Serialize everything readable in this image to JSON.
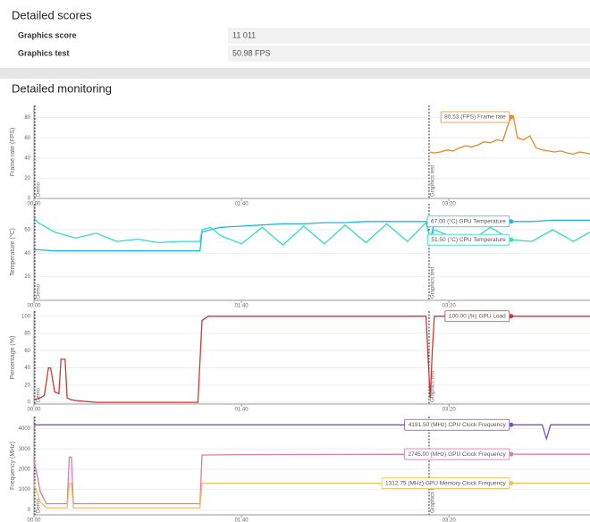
{
  "header": {
    "title": "Detailed scores"
  },
  "scores": {
    "rows": [
      [
        "Graphics score",
        "11 011"
      ],
      [
        "Graphics test",
        "50.98 FPS"
      ]
    ]
  },
  "monitoring": {
    "title": "Detailed monitoring"
  },
  "chart_data": [
    {
      "type": "line",
      "ylabel": "Frame rate (FPS)",
      "xlim": [
        0,
        268
      ],
      "ylim": [
        0,
        92
      ],
      "yticks": [
        0,
        20,
        40,
        60,
        80
      ],
      "xticks": [
        {
          "value": 0,
          "label": "00:00"
        },
        {
          "value": 100,
          "label": "01:40"
        },
        {
          "value": 200,
          "label": "03:20"
        }
      ],
      "markers": [
        {
          "x": 0,
          "label": "Demo"
        },
        {
          "x": 190,
          "label": "Graphics test"
        }
      ],
      "hover_x": 230,
      "x": [
        191,
        193,
        196,
        199,
        202,
        205,
        208,
        211,
        214,
        217,
        220,
        223,
        226,
        228,
        230,
        231,
        233,
        236,
        239,
        242,
        245,
        248,
        251,
        254,
        257,
        260,
        263,
        266,
        268
      ],
      "series": [
        {
          "name": "Frame rate",
          "color": "#e8892b",
          "tooltip": "80.53 (FPS) Frame rate",
          "values": [
            46,
            45,
            46,
            48,
            47,
            50,
            52,
            51,
            53,
            56,
            55,
            58,
            57,
            70,
            80.53,
            82,
            60,
            58,
            62,
            50,
            48,
            47,
            46,
            47,
            45,
            44,
            46,
            45,
            44
          ]
        }
      ]
    },
    {
      "type": "line",
      "ylabel": "Temperature (°C)",
      "xlim": [
        0,
        268
      ],
      "ylim": [
        0,
        82
      ],
      "yticks": [
        20,
        40,
        60
      ],
      "xticks": [
        {
          "value": 0,
          "label": "00:00"
        },
        {
          "value": 100,
          "label": "01:40"
        },
        {
          "value": 200,
          "label": "03:20"
        }
      ],
      "markers": [
        {
          "x": 0,
          "label": "Demo"
        },
        {
          "x": 190,
          "label": "Graphics test"
        }
      ],
      "hover_x": 230,
      "x": [
        0,
        2,
        10,
        20,
        30,
        40,
        50,
        60,
        70,
        80,
        81,
        85,
        90,
        100,
        110,
        120,
        130,
        140,
        150,
        160,
        170,
        180,
        189,
        191,
        193,
        200,
        210,
        220,
        230,
        240,
        250,
        260,
        268
      ],
      "series": [
        {
          "name": "GPU Temperature",
          "color": "#1fb5e6",
          "tooltip": "67.00 (°C) GPU Temperature",
          "values": [
            43,
            43,
            42,
            42,
            42,
            42,
            42,
            42,
            42,
            42,
            58,
            60,
            62,
            63,
            64,
            65,
            65,
            66,
            66,
            67,
            67,
            67,
            67,
            52,
            66,
            67,
            67,
            67,
            67,
            67,
            68,
            68,
            68
          ]
        },
        {
          "name": "CPU Temperature",
          "color": "#2de0c0",
          "tooltip": "51.50 (°C) CPU Temperature",
          "values": [
            70,
            66,
            58,
            53,
            57,
            50,
            52,
            49,
            50,
            50,
            60,
            62,
            55,
            48,
            62,
            47,
            63,
            48,
            64,
            49,
            65,
            50,
            66,
            52,
            60,
            55,
            50,
            62,
            51.5,
            50,
            60,
            50,
            58
          ]
        }
      ]
    },
    {
      "type": "line",
      "ylabel": "Percentage (%)",
      "xlim": [
        0,
        268
      ],
      "ylim": [
        -2,
        106
      ],
      "yticks": [
        0,
        20,
        40,
        60,
        80,
        100
      ],
      "xticks": [
        {
          "value": 0,
          "label": "00:00"
        },
        {
          "value": 100,
          "label": "01:40"
        },
        {
          "value": 200,
          "label": "03:20"
        }
      ],
      "markers": [
        {
          "x": 0,
          "label": "Demo"
        },
        {
          "x": 190,
          "label": "Graphics test"
        }
      ],
      "hover_x": 230,
      "x": [
        0,
        3,
        5,
        7,
        8,
        10,
        12,
        13,
        15,
        16,
        18,
        20,
        25,
        30,
        40,
        60,
        79,
        81,
        84,
        100,
        150,
        189,
        190,
        191,
        192,
        193,
        230,
        268
      ],
      "series": [
        {
          "name": "GPU Load",
          "color": "#c43a3a",
          "tooltip": "100.00 (%) GPU Load",
          "values": [
            3,
            5,
            8,
            40,
            40,
            12,
            10,
            50,
            50,
            5,
            3,
            2,
            1,
            0,
            0,
            0,
            0,
            95,
            100,
            100,
            100,
            100,
            50,
            5,
            60,
            100,
            100,
            100
          ]
        }
      ]
    },
    {
      "type": "line",
      "ylabel": "Frequency (MHz)",
      "xlim": [
        0,
        268
      ],
      "ylim": [
        -250,
        4600
      ],
      "yticks": [
        0,
        1000,
        2000,
        3000,
        4000
      ],
      "xticks": [
        {
          "value": 0,
          "label": "00:00"
        },
        {
          "value": 100,
          "label": "01:40"
        },
        {
          "value": 200,
          "label": "03:20"
        }
      ],
      "markers": [
        {
          "x": 0,
          "label": "Demo"
        },
        {
          "x": 190,
          "label": "Graphics test"
        }
      ],
      "hover_x": 230,
      "x": [
        0,
        3,
        6,
        10,
        16,
        17,
        18,
        19,
        20,
        30,
        79,
        80,
        81,
        100,
        150,
        189,
        191,
        193,
        230,
        245,
        247,
        249,
        268
      ],
      "series": [
        {
          "name": "CPU Clock Frequency",
          "color": "#7b4fc9",
          "tooltip": "4191.50 (MHz) CPU Clock Frequency",
          "values": [
            4190,
            4190,
            4190,
            4190,
            4190,
            4190,
            4190,
            4190,
            4190,
            4190,
            4190,
            4190,
            4190,
            4190,
            4190,
            4190,
            4180,
            4190,
            4191.5,
            4190,
            3500,
            4190,
            4190
          ]
        },
        {
          "name": "GPU Clock Frequency",
          "color": "#e07aa8",
          "tooltip": "2745.00 (MHz) GPU Clock Frequency",
          "values": [
            2500,
            900,
            300,
            300,
            300,
            2600,
            2600,
            300,
            300,
            300,
            300,
            300,
            2700,
            2720,
            2730,
            2740,
            2700,
            2745,
            2745,
            2740,
            2740,
            2740,
            2740
          ]
        },
        {
          "name": "GPU Memory Clock Frequency",
          "color": "#f0c060",
          "tooltip": "1312.75 (MHz) GPU Memory Clock Frequency",
          "values": [
            1300,
            400,
            100,
            100,
            100,
            1300,
            1300,
            100,
            100,
            100,
            100,
            100,
            1312,
            1312,
            1312,
            1312,
            1312,
            1312,
            1312.75,
            1312,
            1312,
            1312,
            1312
          ]
        }
      ]
    }
  ]
}
